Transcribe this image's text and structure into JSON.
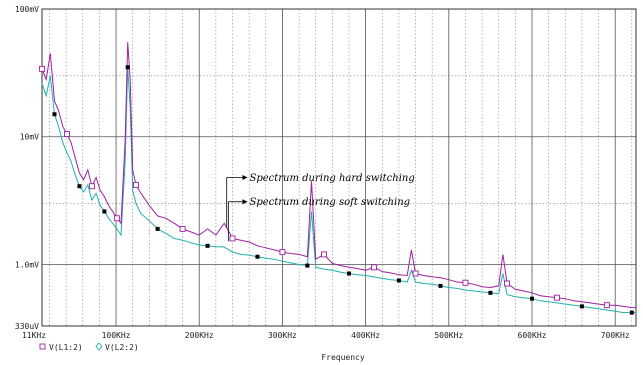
{
  "chart_data": {
    "type": "line",
    "xlabel": "Frequency",
    "ylabel": "",
    "title": "",
    "xlim": [
      11000,
      725000
    ],
    "ylim": [
      0.00033,
      0.1
    ],
    "yscale": "log",
    "grid": true,
    "x_ticks": [
      {
        "value": 11000,
        "label": "11KHz"
      },
      {
        "value": 100000,
        "label": "100KHz"
      },
      {
        "value": 200000,
        "label": "200KHz"
      },
      {
        "value": 300000,
        "label": "300KHz"
      },
      {
        "value": 400000,
        "label": "400KHz"
      },
      {
        "value": 500000,
        "label": "500KHz"
      },
      {
        "value": 600000,
        "label": "600KHz"
      },
      {
        "value": 700000,
        "label": "700KHz"
      }
    ],
    "y_ticks": [
      {
        "value": 0.1,
        "label": "100mV"
      },
      {
        "value": 0.01,
        "label": "10mV"
      },
      {
        "value": 0.001,
        "label": "1.0mV"
      },
      {
        "value": 0.00033,
        "label": "330uV"
      }
    ],
    "annotations": [
      {
        "text": "Spectrum during hard switching",
        "x": 233000,
        "y": 0.00195,
        "lx": 258000,
        "ly": 0.0048
      },
      {
        "text": "Spectrum during soft switching",
        "x": 235000,
        "y": 0.00152,
        "lx": 258000,
        "ly": 0.0031
      }
    ],
    "series": [
      {
        "name": "V(L1:2)",
        "color": "#a020a0",
        "marker": "square-open",
        "x": [
          11000,
          16000,
          21000,
          26000,
          31000,
          36000,
          41000,
          46000,
          51000,
          56000,
          61000,
          66000,
          71000,
          76000,
          81000,
          86000,
          91000,
          96000,
          101000,
          106000,
          111000,
          114000,
          117000,
          120000,
          124000,
          130000,
          140000,
          150000,
          160000,
          170000,
          180000,
          190000,
          200000,
          210000,
          220000,
          230000,
          240000,
          250000,
          260000,
          270000,
          280000,
          290000,
          300000,
          310000,
          320000,
          330000,
          335000,
          340000,
          350000,
          360000,
          370000,
          380000,
          390000,
          400000,
          410000,
          420000,
          430000,
          440000,
          450000,
          455000,
          460000,
          470000,
          480000,
          490000,
          500000,
          510000,
          520000,
          530000,
          540000,
          550000,
          560000,
          565000,
          570000,
          580000,
          590000,
          600000,
          610000,
          620000,
          630000,
          640000,
          650000,
          660000,
          670000,
          680000,
          690000,
          700000,
          710000,
          720000,
          725000
        ],
        "y": [
          0.034,
          0.028,
          0.045,
          0.019,
          0.016,
          0.012,
          0.0105,
          0.009,
          0.0068,
          0.0052,
          0.0046,
          0.0055,
          0.0041,
          0.0048,
          0.0038,
          0.0034,
          0.0029,
          0.0026,
          0.0023,
          0.0021,
          0.0095,
          0.055,
          0.028,
          0.0055,
          0.0042,
          0.0036,
          0.0029,
          0.0024,
          0.0023,
          0.0021,
          0.0019,
          0.0018,
          0.0017,
          0.0019,
          0.0017,
          0.0021,
          0.0016,
          0.00155,
          0.0015,
          0.0014,
          0.00135,
          0.0013,
          0.00125,
          0.00122,
          0.0012,
          0.00115,
          0.0045,
          0.0011,
          0.0012,
          0.00102,
          0.00098,
          0.00095,
          0.00093,
          0.0009,
          0.00095,
          0.00088,
          0.00086,
          0.00083,
          0.00082,
          0.0013,
          0.00085,
          0.00082,
          0.0008,
          0.00079,
          0.00076,
          0.00073,
          0.00072,
          0.0007,
          0.00067,
          0.00066,
          0.00068,
          0.0012,
          0.00071,
          0.00064,
          0.00062,
          0.0006,
          0.00057,
          0.00056,
          0.00055,
          0.00054,
          0.00052,
          0.00051,
          0.0005,
          0.00049,
          0.00048,
          0.00048,
          0.00047,
          0.00046,
          0.00046
        ]
      },
      {
        "name": "V(L2:2)",
        "color": "#20b0b0",
        "marker": "diamond-open",
        "x": [
          11000,
          16000,
          21000,
          26000,
          31000,
          36000,
          41000,
          46000,
          51000,
          56000,
          61000,
          66000,
          71000,
          76000,
          81000,
          86000,
          91000,
          96000,
          101000,
          106000,
          111000,
          114000,
          117000,
          120000,
          124000,
          130000,
          140000,
          150000,
          160000,
          170000,
          180000,
          190000,
          200000,
          210000,
          220000,
          230000,
          240000,
          250000,
          260000,
          270000,
          280000,
          290000,
          300000,
          310000,
          320000,
          330000,
          335000,
          340000,
          350000,
          360000,
          370000,
          380000,
          390000,
          400000,
          410000,
          420000,
          430000,
          440000,
          450000,
          455000,
          460000,
          470000,
          480000,
          490000,
          500000,
          510000,
          520000,
          530000,
          540000,
          550000,
          560000,
          565000,
          570000,
          580000,
          590000,
          600000,
          610000,
          620000,
          630000,
          640000,
          650000,
          660000,
          670000,
          680000,
          690000,
          700000,
          710000,
          720000,
          725000
        ],
        "y": [
          0.026,
          0.021,
          0.03,
          0.015,
          0.012,
          0.009,
          0.0075,
          0.0064,
          0.005,
          0.0041,
          0.0037,
          0.0042,
          0.0032,
          0.0036,
          0.0029,
          0.0026,
          0.0023,
          0.0021,
          0.0019,
          0.0017,
          0.0065,
          0.035,
          0.017,
          0.0038,
          0.003,
          0.0025,
          0.0022,
          0.0019,
          0.00175,
          0.0016,
          0.00155,
          0.00148,
          0.00142,
          0.0014,
          0.00138,
          0.00137,
          0.00125,
          0.0012,
          0.00118,
          0.00115,
          0.00112,
          0.0011,
          0.00106,
          0.00103,
          0.001,
          0.00098,
          0.0026,
          0.00095,
          0.00092,
          0.0009,
          0.00087,
          0.00085,
          0.00083,
          0.00082,
          0.0008,
          0.00078,
          0.00076,
          0.00075,
          0.00073,
          0.0009,
          0.00073,
          0.00071,
          0.0007,
          0.00068,
          0.00066,
          0.00065,
          0.00063,
          0.00062,
          0.00061,
          0.0006,
          0.00059,
          0.00085,
          0.00058,
          0.00056,
          0.00055,
          0.00054,
          0.00052,
          0.00051,
          0.0005,
          0.00049,
          0.00048,
          0.00047,
          0.00046,
          0.00045,
          0.00044,
          0.00043,
          0.00042,
          0.00042,
          0.00042
        ]
      }
    ]
  }
}
